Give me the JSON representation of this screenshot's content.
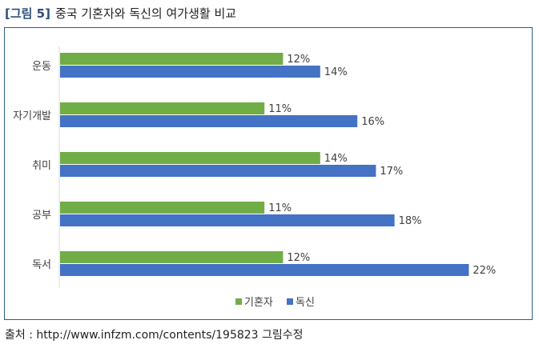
{
  "header": {
    "figure_tag": "[그림 5]",
    "title": "중국 기혼자와 독신의 여가생활 비교"
  },
  "source": "출처 : http://www.infzm.com/contents/195823 그림수정",
  "colors": {
    "title_tag": "#2e4f7c",
    "frame": "#2a5f86",
    "series_married": "#70ad47",
    "series_single": "#4472c4"
  },
  "chart_data": {
    "type": "bar",
    "orientation": "horizontal",
    "categories": [
      "운동",
      "자기개발",
      "취미",
      "공부",
      "독서"
    ],
    "series": [
      {
        "name": "기혼자",
        "values": [
          12,
          11,
          14,
          11,
          12
        ],
        "labels": [
          "12%",
          "11%",
          "14%",
          "11%",
          "12%"
        ],
        "color": "#70ad47"
      },
      {
        "name": "독신",
        "values": [
          14,
          16,
          17,
          18,
          22
        ],
        "labels": [
          "14%",
          "16%",
          "17%",
          "18%",
          "22%"
        ],
        "color": "#4472c4"
      }
    ],
    "xlim": [
      0,
      25
    ],
    "grid": false,
    "legend_position": "bottom"
  }
}
